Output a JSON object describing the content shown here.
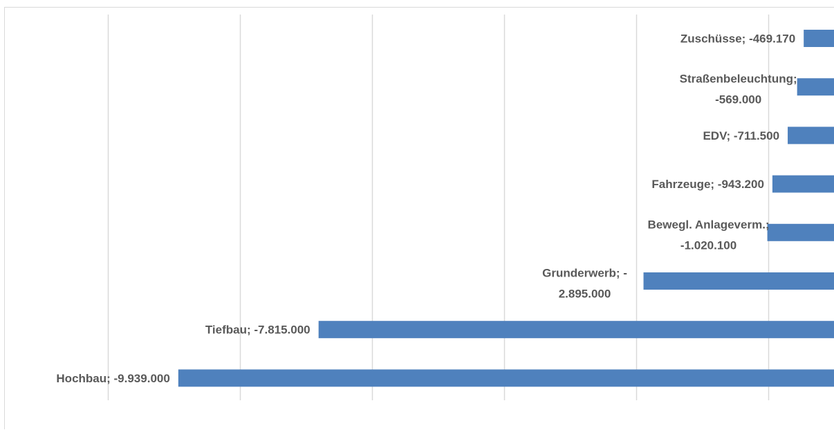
{
  "chart_data": {
    "type": "bar",
    "orientation": "horizontal",
    "categories": [
      "Zuschüsse",
      "Straßenbeleuchtung",
      "EDV",
      "Fahrzeuge",
      "Bewegl. Anlageverm.",
      "Grunderwerb",
      "Tiefbau",
      "Hochbau"
    ],
    "values": [
      -469170,
      -569000,
      -711500,
      -943200,
      -1020100,
      -2895000,
      -7815000,
      -9939000
    ],
    "data_labels": [
      [
        "Zuschüsse; -469.170"
      ],
      [
        "Straßenbeleuchtung;",
        "-569.000"
      ],
      [
        "EDV; -711.500"
      ],
      [
        "Fahrzeuge; -943.200"
      ],
      [
        "Bewegl. Anlageverm.;",
        "-1.020.100"
      ],
      [
        "Grunderwerb; -",
        "2.895.000"
      ],
      [
        "Tiefbau; -7.815.000"
      ],
      [
        "Hochbau; -9.939.000"
      ]
    ],
    "xlim": [
      -12000000,
      0
    ],
    "x_gridlines": [
      -11000000,
      -9000000,
      -7000000,
      -5000000,
      -3000000,
      -1000000
    ],
    "title": "",
    "xlabel": "",
    "ylabel": "",
    "grid": true,
    "legend": "none",
    "bar_color": "#4F81BD",
    "gridline_color": "#d9d9d9",
    "label_color": "#595959"
  }
}
